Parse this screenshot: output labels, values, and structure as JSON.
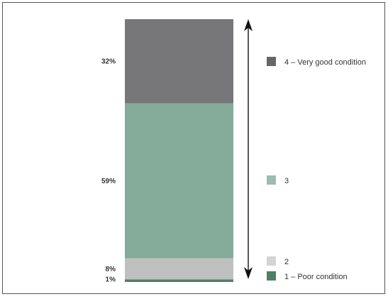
{
  "chart_data": {
    "type": "bar",
    "stacked": true,
    "title": "",
    "xlabel": "",
    "ylabel": "",
    "ylim": [
      0,
      100
    ],
    "axis_arrow": true,
    "grid": false,
    "legend_position": "right",
    "series": [
      {
        "name": "1 – Poor condition",
        "value": 1,
        "label": "1%",
        "color": "#4e8068"
      },
      {
        "name": "2",
        "value": 8,
        "label": "8%",
        "color": "#c0c0c0"
      },
      {
        "name": "3",
        "value": 59,
        "label": "59%",
        "color": "#85ab9a"
      },
      {
        "name": "4 – Very good condition",
        "value": 32,
        "label": "32%",
        "color": "#77777a"
      }
    ],
    "legend": [
      {
        "series_index": 3,
        "label": "4 – Very good condition",
        "color": "#666666"
      },
      {
        "series_index": 2,
        "label": "3",
        "color": "#9cbcae"
      },
      {
        "series_index": 1,
        "label": "2",
        "color": "#d4d4d4"
      },
      {
        "series_index": 0,
        "label": "1 – Poor condition",
        "color": "#4e8068"
      }
    ]
  }
}
